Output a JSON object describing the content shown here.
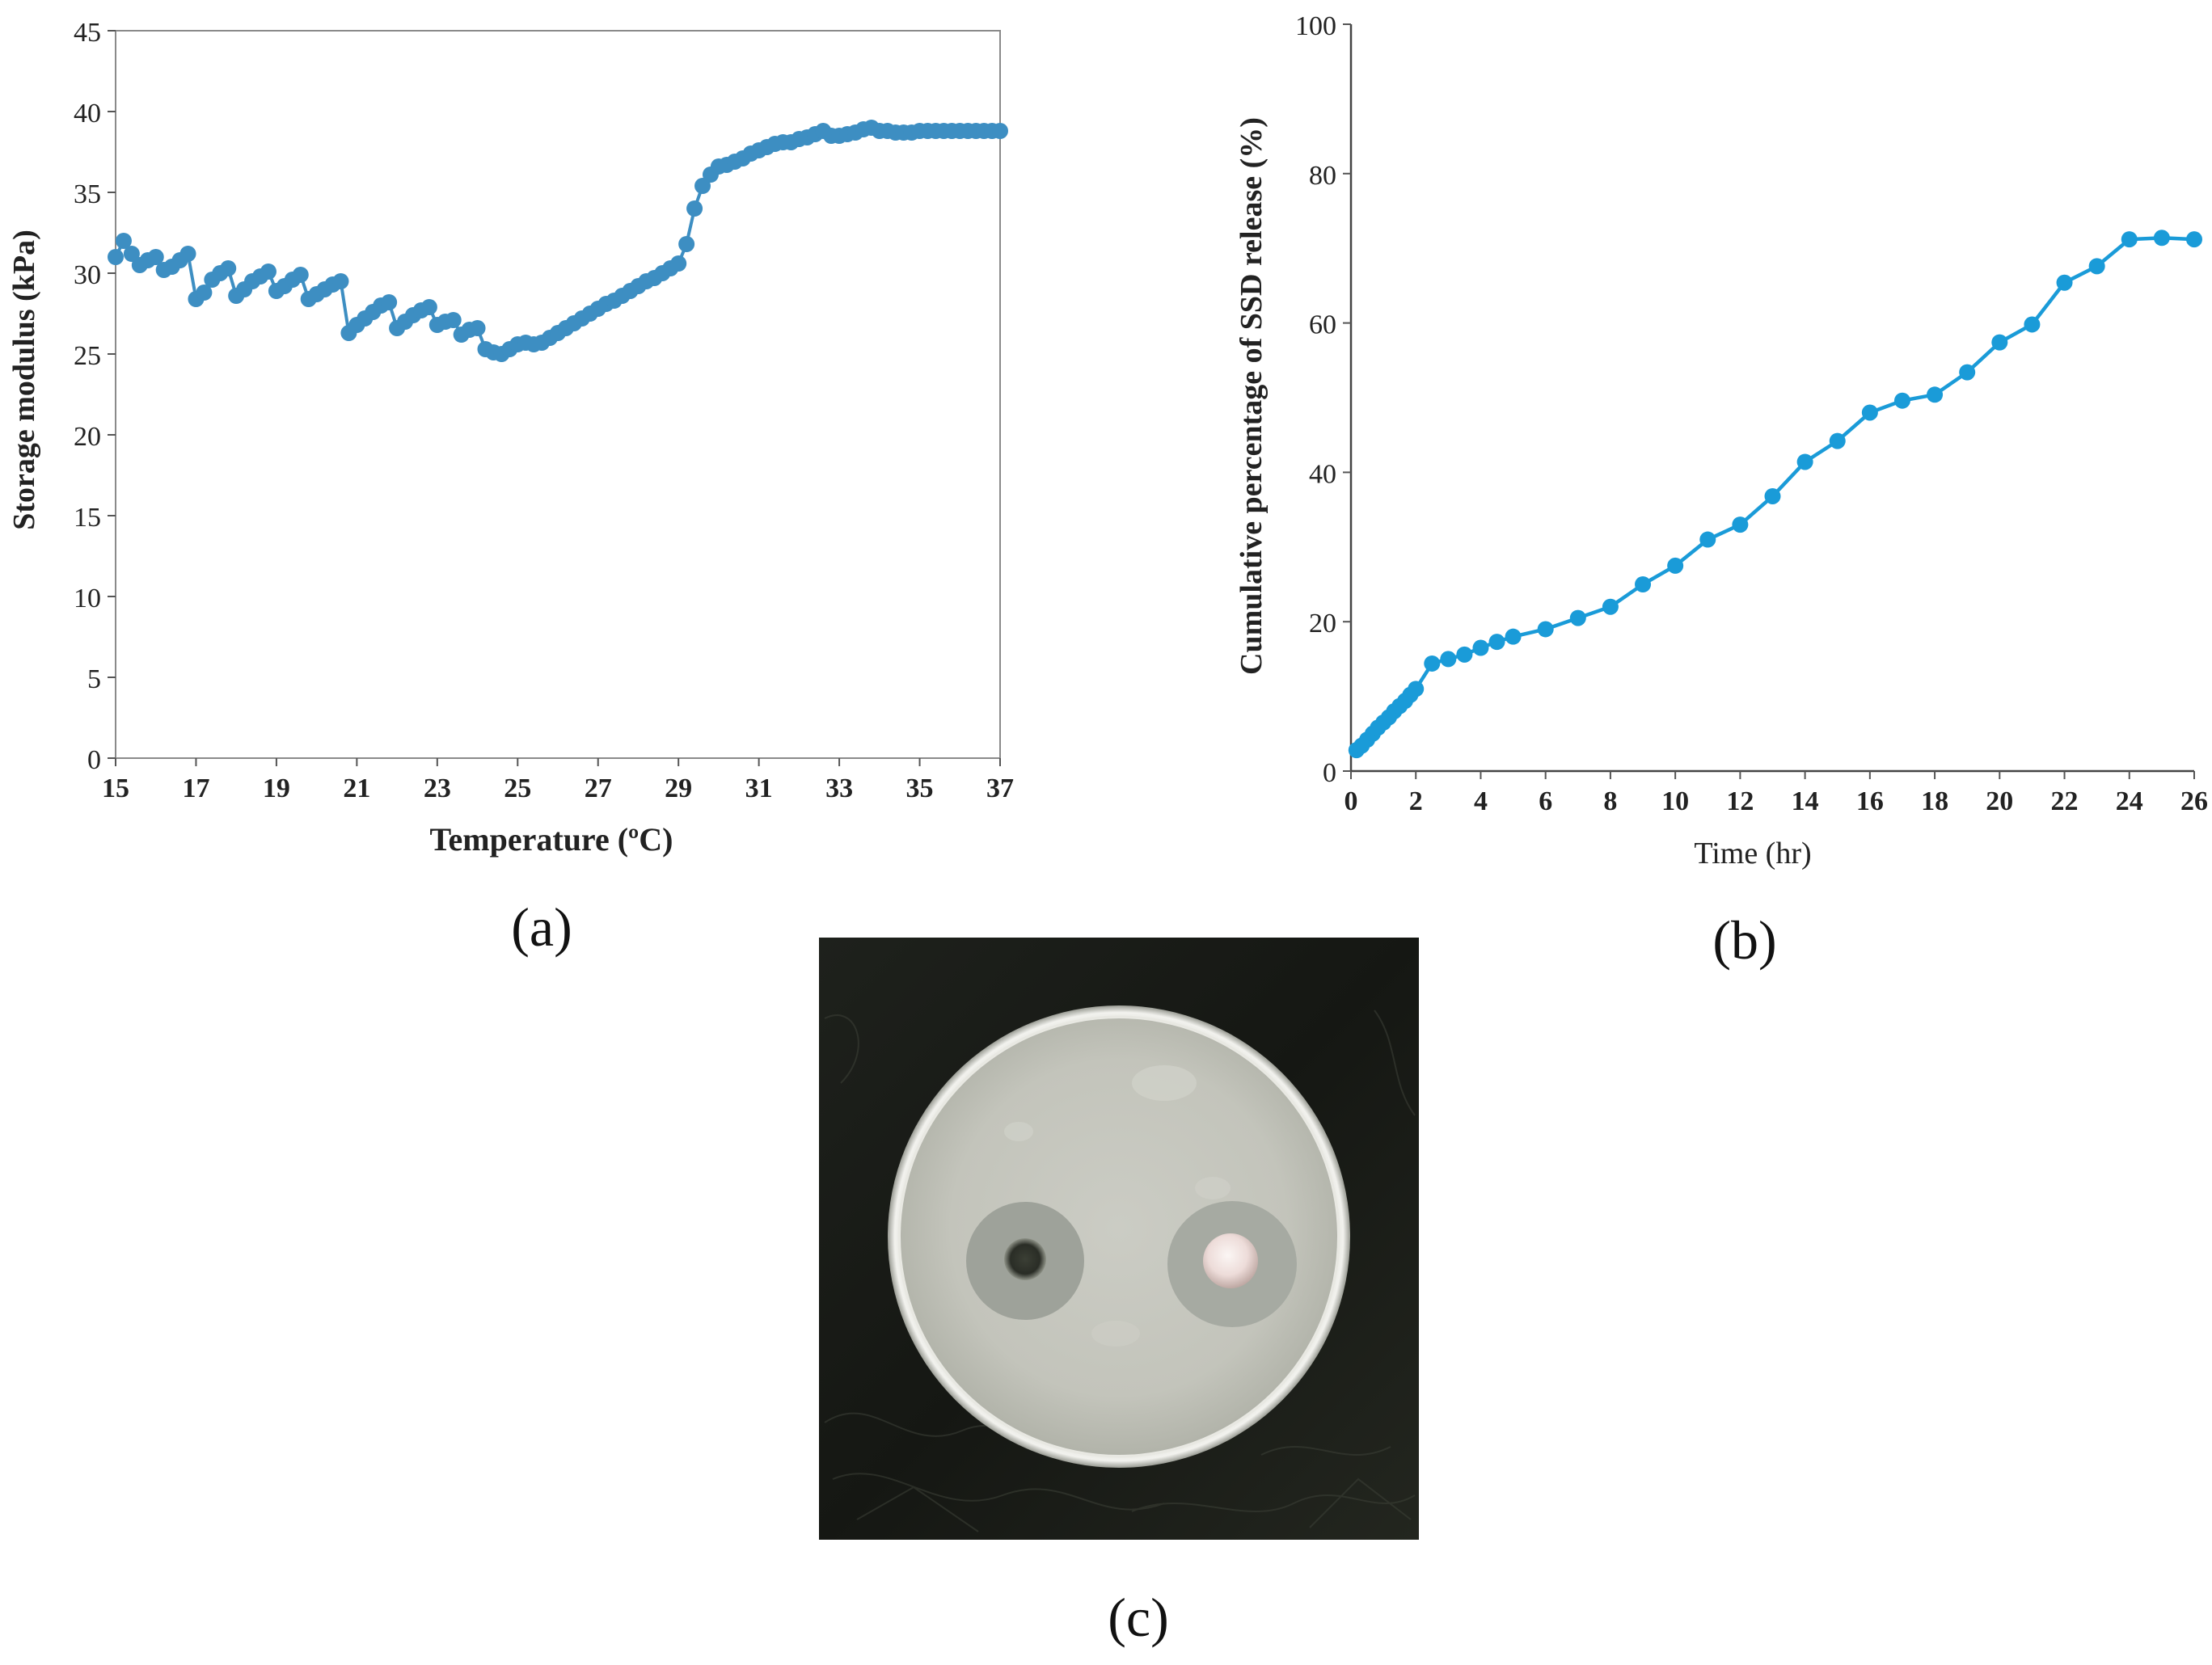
{
  "chart_data": [
    {
      "id": "a",
      "type": "line",
      "panel_label": "(a)",
      "title": "",
      "xlabel": "Temperature (ºC)",
      "ylabel": "Storage modulus (kPa)",
      "xlim": [
        15,
        37
      ],
      "ylim": [
        0,
        45
      ],
      "xticks": [
        "15",
        "17",
        "19",
        "21",
        "23",
        "25",
        "27",
        "29",
        "31",
        "33",
        "35",
        "37"
      ],
      "yticks": [
        "0",
        "5",
        "10",
        "15",
        "20",
        "25",
        "30",
        "35",
        "40",
        "45"
      ],
      "grid": false,
      "color": "#3d8ec2",
      "series": [
        {
          "name": "Storage modulus",
          "x": [
            15.0,
            15.2,
            15.4,
            15.6,
            15.8,
            16.0,
            16.2,
            16.4,
            16.6,
            16.8,
            17.0,
            17.2,
            17.4,
            17.6,
            17.8,
            18.0,
            18.2,
            18.4,
            18.6,
            18.8,
            19.0,
            19.2,
            19.4,
            19.6,
            19.8,
            20.0,
            20.2,
            20.4,
            20.6,
            20.8,
            21.0,
            21.2,
            21.4,
            21.6,
            21.8,
            22.0,
            22.2,
            22.4,
            22.6,
            22.8,
            23.0,
            23.2,
            23.4,
            23.6,
            23.8,
            24.0,
            24.2,
            24.4,
            24.6,
            24.8,
            25.0,
            25.2,
            25.4,
            25.6,
            25.8,
            26.0,
            26.2,
            26.4,
            26.6,
            26.8,
            27.0,
            27.2,
            27.4,
            27.6,
            27.8,
            28.0,
            28.2,
            28.4,
            28.6,
            28.8,
            29.0,
            29.2,
            29.4,
            29.6,
            29.8,
            30.0,
            30.2,
            30.4,
            30.6,
            30.8,
            31.0,
            31.2,
            31.4,
            31.6,
            31.8,
            32.0,
            32.2,
            32.4,
            32.6,
            32.8,
            33.0,
            33.2,
            33.4,
            33.6,
            33.8,
            34.0,
            34.2,
            34.4,
            34.6,
            34.8,
            35.0,
            35.2,
            35.4,
            35.6,
            35.8,
            36.0,
            36.2,
            36.4,
            36.6,
            36.8,
            37.0
          ],
          "values": [
            31.0,
            32.0,
            31.2,
            30.5,
            30.8,
            31.0,
            30.2,
            30.4,
            30.8,
            31.2,
            28.4,
            28.8,
            29.6,
            30.0,
            30.3,
            28.6,
            29.0,
            29.5,
            29.8,
            30.1,
            28.9,
            29.2,
            29.6,
            29.9,
            28.4,
            28.7,
            29.0,
            29.3,
            29.5,
            26.3,
            26.8,
            27.2,
            27.6,
            28.0,
            28.2,
            26.6,
            27.0,
            27.4,
            27.7,
            27.9,
            26.8,
            27.0,
            27.1,
            26.2,
            26.5,
            26.6,
            25.3,
            25.1,
            25.0,
            25.3,
            25.6,
            25.7,
            25.6,
            25.7,
            26.0,
            26.3,
            26.6,
            26.9,
            27.2,
            27.5,
            27.8,
            28.1,
            28.3,
            28.6,
            28.9,
            29.2,
            29.5,
            29.7,
            30.0,
            30.3,
            30.6,
            31.8,
            34.0,
            35.4,
            36.1,
            36.6,
            36.7,
            36.9,
            37.1,
            37.4,
            37.6,
            37.8,
            38.0,
            38.1,
            38.1,
            38.3,
            38.4,
            38.6,
            38.8,
            38.5,
            38.5,
            38.6,
            38.7,
            38.9,
            39.0,
            38.8,
            38.8,
            38.7,
            38.7,
            38.7,
            38.8,
            38.8,
            38.8,
            38.8,
            38.8,
            38.8,
            38.8,
            38.8,
            38.8,
            38.8,
            38.8
          ]
        }
      ]
    },
    {
      "id": "b",
      "type": "line",
      "panel_label": "(b)",
      "title": "",
      "xlabel": "Time (hr)",
      "ylabel": "Cumulative percentage of SSD release (%)",
      "xlim": [
        0,
        26
      ],
      "ylim": [
        0,
        100
      ],
      "xticks": [
        "0",
        "2",
        "4",
        "6",
        "8",
        "10",
        "12",
        "14",
        "16",
        "18",
        "20",
        "22",
        "24",
        "26"
      ],
      "yticks": [
        "0",
        "20",
        "40",
        "60",
        "80",
        "100"
      ],
      "grid": false,
      "color": "#1a9bd8",
      "series": [
        {
          "name": "SSD release",
          "x": [
            0.17,
            0.33,
            0.5,
            0.67,
            0.83,
            1.0,
            1.17,
            1.33,
            1.5,
            1.67,
            1.83,
            2.0,
            2.5,
            3.0,
            3.5,
            4.0,
            4.5,
            5.0,
            6.0,
            7.0,
            8.0,
            9.0,
            10.0,
            11.0,
            12.0,
            13.0,
            14.0,
            15.0,
            16.0,
            17.0,
            18.0,
            19.0,
            20.0,
            21.0,
            22.0,
            23.0,
            24.0,
            25.0,
            26.0
          ],
          "values": [
            2.8,
            3.4,
            4.2,
            5.0,
            5.8,
            6.5,
            7.2,
            8.0,
            8.7,
            9.4,
            10.2,
            11.0,
            14.4,
            15.0,
            15.6,
            16.5,
            17.3,
            18.0,
            19.0,
            20.5,
            22.0,
            25.0,
            27.5,
            31.0,
            33.0,
            36.8,
            41.4,
            44.2,
            48.0,
            49.6,
            50.4,
            53.4,
            57.4,
            59.8,
            65.4,
            67.6,
            71.2,
            71.4,
            71.2
          ]
        }
      ]
    }
  ],
  "photo": {
    "panel_label": "(c)",
    "description": "petri-dish-inhibition-zone-photo"
  }
}
